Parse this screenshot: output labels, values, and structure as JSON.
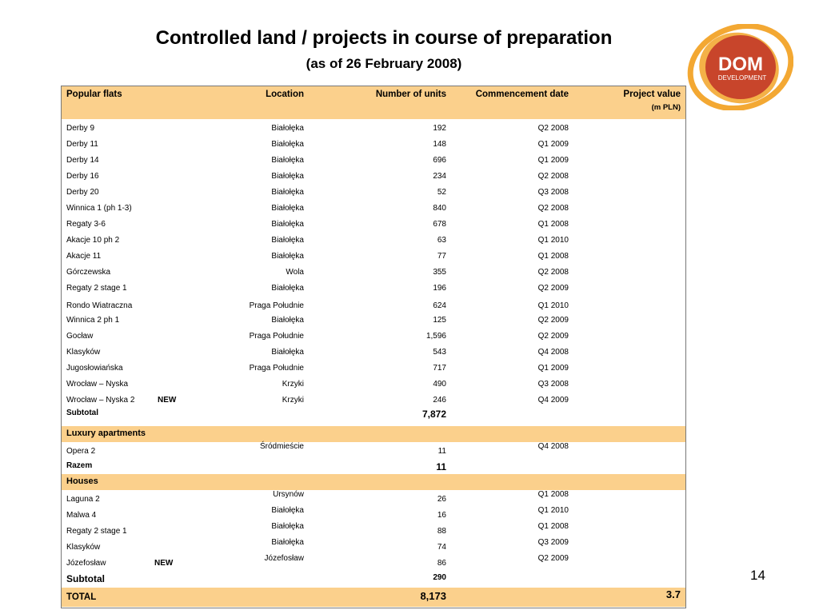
{
  "title": "Controlled land / projects in course of preparation",
  "subtitle": "(as of 26 February 2008)",
  "page_number": "14",
  "logo": {
    "line1": "DOM",
    "line2": "DEVELOPMENT",
    "colors": {
      "outer": "#f3a833",
      "inner": "#c0392b"
    }
  },
  "columns": {
    "name": "Popular flats",
    "location": "Location",
    "units": "Number of units",
    "date": "Commencement date",
    "value": "Project value",
    "value_unit": "(m PLN)"
  },
  "popular_flats": [
    {
      "name": "Derby  9",
      "location": "Białołęka",
      "units": "192",
      "date": "Q2 2008"
    },
    {
      "name": "Derby 11",
      "location": "Białołęka",
      "units": "148",
      "date": "Q1 2009"
    },
    {
      "name": "Derby 14",
      "location": "Białołęka",
      "units": "696",
      "date": "Q1 2009"
    },
    {
      "name": "Derby 16",
      "location": "Białołęka",
      "units": "234",
      "date": "Q2 2008"
    },
    {
      "name": "Derby 20",
      "location": "Białołęka",
      "units": "52",
      "date": "Q3 2008"
    },
    {
      "name": "Winnica 1 (ph 1-3)",
      "location": "Białołęka",
      "units": "840",
      "date": "Q2 2008"
    },
    {
      "name": "Regaty 3-6",
      "location": "Białołęka",
      "units": "678",
      "date": "Q1 2008"
    },
    {
      "name": "Akacje 10 ph 2",
      "location": "Białołęka",
      "units": "63",
      "date": "Q1 2010"
    },
    {
      "name": "Akacje 11",
      "location": "Białołęka",
      "units": "77",
      "date": "Q1 2008"
    },
    {
      "name": "Górczewska",
      "location": "Wola",
      "units": "355",
      "date": "Q2 2008"
    },
    {
      "name": "Regaty 2 stage 1",
      "location": "Białołęka",
      "units": "196",
      "date": "Q2 2009"
    },
    {
      "name": "Rondo Wiatraczna",
      "location": "Praga Południe",
      "units": "624",
      "date": "Q1 2010"
    },
    {
      "name": "Winnica 2 ph 1",
      "location": "Białołęka",
      "units": "125",
      "date": "Q2 2009"
    },
    {
      "name": "Gocław",
      "location": "Praga Południe",
      "units": "1,596",
      "date": "Q2 2009"
    },
    {
      "name": "Klasyków",
      "location": "Białołęka",
      "units": "543",
      "date": "Q4 2008"
    },
    {
      "name": "Jugosłowiańska",
      "location": "Praga Południe",
      "units": "717",
      "date": "Q1 2009"
    },
    {
      "name": "Wrocław – Nyska",
      "location": "Krzyki",
      "units": "490",
      "date": "Q3 2008"
    },
    {
      "name": "Wrocław – Nyska 2",
      "badge": "NEW",
      "location": "Krzyki",
      "units": "246",
      "date": "Q4 2009"
    }
  ],
  "popular_subtotal": {
    "label": "Subtotal",
    "units": "7,872"
  },
  "luxury": {
    "label": "Luxury apartments",
    "rows": [
      {
        "name": "Opera 2",
        "location": "Śródmieście",
        "units": "11",
        "date": "Q4 2008"
      }
    ],
    "subtotal": {
      "label": "Razem",
      "units": "11"
    }
  },
  "houses": {
    "label": "Houses",
    "rows": [
      {
        "name": "Laguna 2",
        "location": "Ursynów",
        "units": "26",
        "date": "Q1 2008"
      },
      {
        "name": "Malwa 4",
        "location": "Białołęka",
        "units": "16",
        "date": "Q1 2010"
      },
      {
        "name": "Regaty 2 stage 1",
        "location": "Białołęka",
        "units": "88",
        "date": "Q1 2008"
      },
      {
        "name": "Klasyków",
        "location": "Białołęka",
        "units": "74",
        "date": "Q3 2009"
      },
      {
        "name": "Józefosław",
        "badge": "NEW",
        "location": "Józefosław",
        "units": "86",
        "date": "Q2 2009"
      }
    ],
    "subtotal": {
      "label": "Subtotal",
      "units": "290"
    }
  },
  "total": {
    "label": "TOTAL",
    "units": "8,173",
    "value": "3.7"
  }
}
